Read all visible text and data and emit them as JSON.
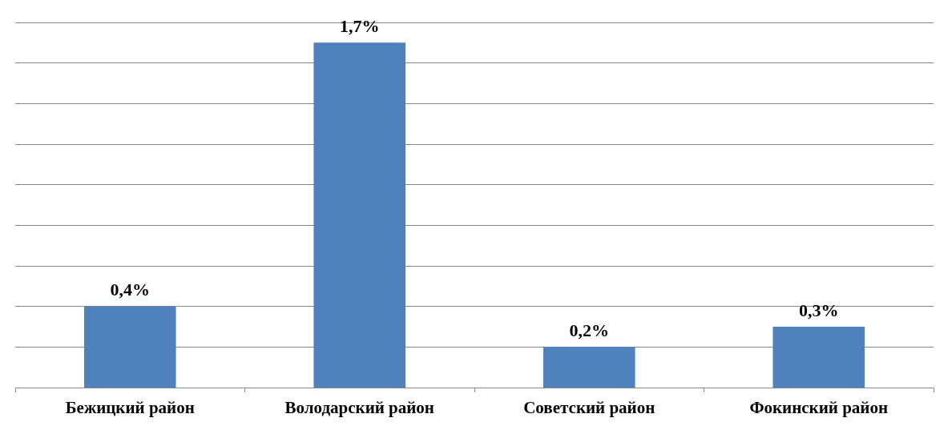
{
  "chart_data": {
    "type": "bar",
    "categories": [
      "Бежицкий район",
      "Володарский район",
      "Советский район",
      "Фокинский район"
    ],
    "values": [
      0.4,
      1.7,
      0.2,
      0.3
    ],
    "value_labels": [
      "0,4%",
      "1,7%",
      "0,2%",
      "0,3%"
    ],
    "color": "#4f81bd",
    "ylim": [
      0,
      1.8
    ],
    "yticks": [
      {
        "value": 0,
        "label": null
      },
      {
        "value": 0.2,
        "label": null
      },
      {
        "value": 0.4,
        "label": null
      },
      {
        "value": 0.6,
        "label": null
      },
      {
        "value": 0.8,
        "label": null
      },
      {
        "value": 1,
        "label": null
      },
      {
        "value": 1.2,
        "label": null
      },
      {
        "value": 1.4,
        "label": null
      },
      {
        "value": 1.6,
        "label": null
      },
      {
        "value": 1.8,
        "label": null
      }
    ],
    "grid": "y"
  }
}
